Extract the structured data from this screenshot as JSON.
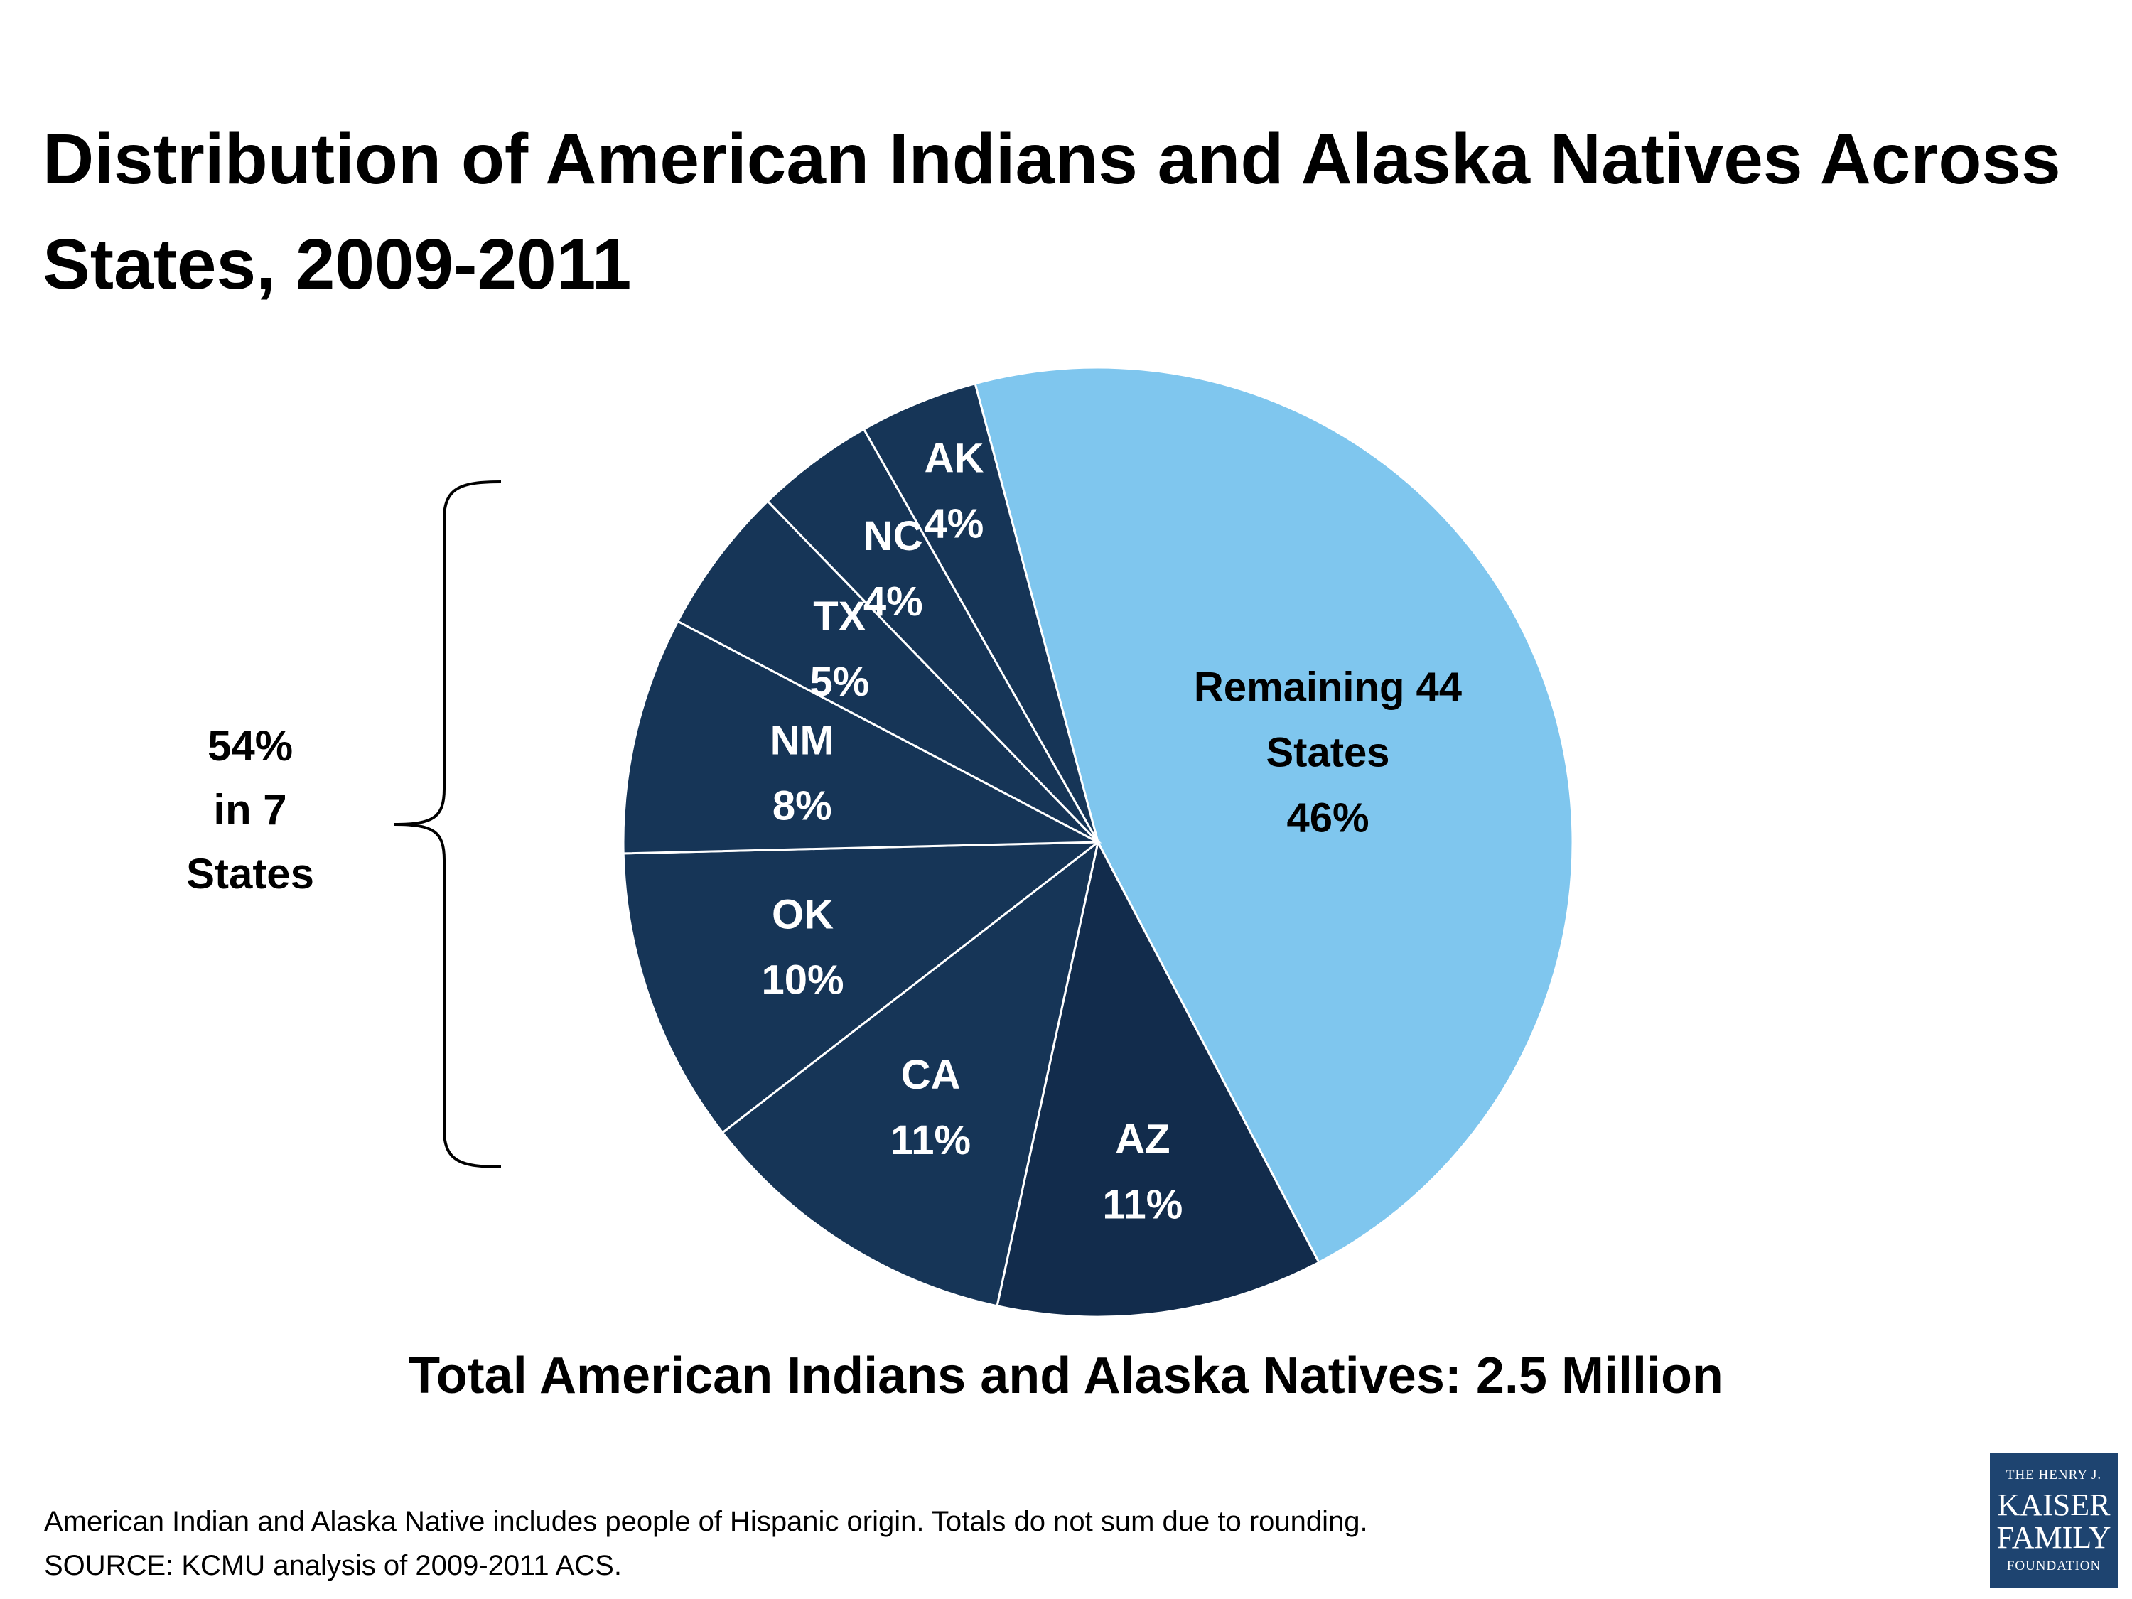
{
  "title": "Distribution of American Indians and Alaska Natives Across States, 2009-2011",
  "bracket": {
    "line1": "54%",
    "line2": "in 7",
    "line3": "States"
  },
  "total_label": "Total American Indians and Alaska Natives: 2.5 Million",
  "footnote": {
    "line1": "American Indian and Alaska Native includes people of Hispanic origin. Totals do not sum due to rounding.",
    "line2": "SOURCE: KCMU analysis of 2009-2011 ACS."
  },
  "logo": {
    "line1": "THE HENRY J.",
    "line2": "KAISER",
    "line3": "FAMILY",
    "line4": "FOUNDATION"
  },
  "colors": {
    "light": "#7fc6ee",
    "dark": "#163557",
    "darkest": "#122c4c",
    "text_light": "#ffffff",
    "text_dark": "#000000"
  },
  "chart_data": {
    "type": "pie",
    "slices": [
      {
        "name": "Remaining 44 States",
        "value": 46,
        "label_lines": [
          "Remaining 44",
          "States",
          "46%"
        ],
        "color": "#7fc6ee"
      },
      {
        "name": "AZ",
        "value": 11,
        "label_lines": [
          "AZ",
          "11%"
        ],
        "color": "#122c4c"
      },
      {
        "name": "CA",
        "value": 11,
        "label_lines": [
          "CA",
          "11%"
        ],
        "color": "#163557"
      },
      {
        "name": "OK",
        "value": 10,
        "label_lines": [
          "OK",
          "10%"
        ],
        "color": "#163557"
      },
      {
        "name": "NM",
        "value": 8,
        "label_lines": [
          "NM",
          "8%"
        ],
        "color": "#163557"
      },
      {
        "name": "TX",
        "value": 5,
        "label_lines": [
          "TX",
          "5%"
        ],
        "color": "#163557"
      },
      {
        "name": "NC",
        "value": 4,
        "label_lines": [
          "NC",
          "4%"
        ],
        "color": "#163557"
      },
      {
        "name": "AK",
        "value": 4,
        "label_lines": [
          "AK",
          "4%"
        ],
        "color": "#163557"
      }
    ]
  }
}
